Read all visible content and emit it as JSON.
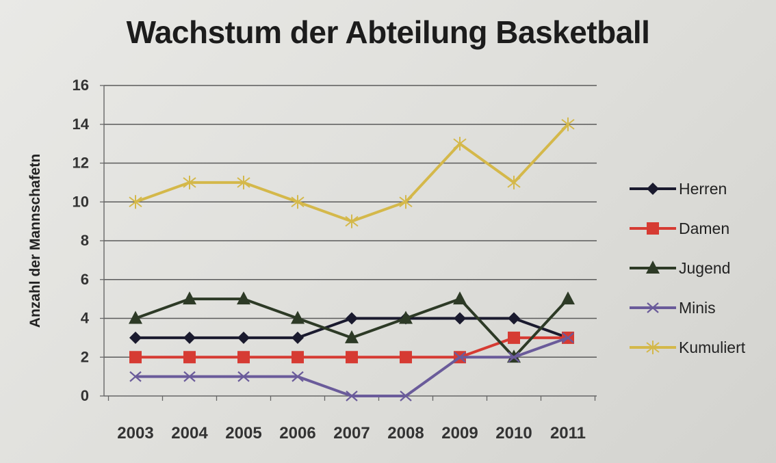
{
  "chart_data": {
    "type": "line",
    "title": "Wachstum der Abteilung Basketball",
    "xlabel": "",
    "ylabel": "Anzahl der Mannschafetn",
    "categories": [
      "2003",
      "2004",
      "2005",
      "2006",
      "2007",
      "2008",
      "2009",
      "2010",
      "2011"
    ],
    "ylim": [
      0,
      16
    ],
    "yticks": [
      0,
      2,
      4,
      6,
      8,
      10,
      12,
      14,
      16
    ],
    "grid": true,
    "legend_position": "right",
    "series": [
      {
        "name": "Herren",
        "color": "#1a1a2e",
        "marker": "diamond",
        "values": [
          3,
          3,
          3,
          3,
          4,
          4,
          4,
          4,
          3
        ]
      },
      {
        "name": "Damen",
        "color": "#d63b33",
        "marker": "square",
        "values": [
          2,
          2,
          2,
          2,
          2,
          2,
          2,
          3,
          3
        ]
      },
      {
        "name": "Jugend",
        "color": "#2d3a26",
        "marker": "triangle",
        "values": [
          4,
          5,
          5,
          4,
          3,
          4,
          5,
          2,
          5
        ]
      },
      {
        "name": "Minis",
        "color": "#6a5b9a",
        "marker": "x",
        "values": [
          1,
          1,
          1,
          1,
          0,
          0,
          2,
          2,
          3
        ]
      },
      {
        "name": "Kumuliert",
        "color": "#d4b84a",
        "marker": "star",
        "values": [
          10,
          11,
          11,
          10,
          9,
          10,
          13,
          11,
          14
        ]
      }
    ]
  }
}
